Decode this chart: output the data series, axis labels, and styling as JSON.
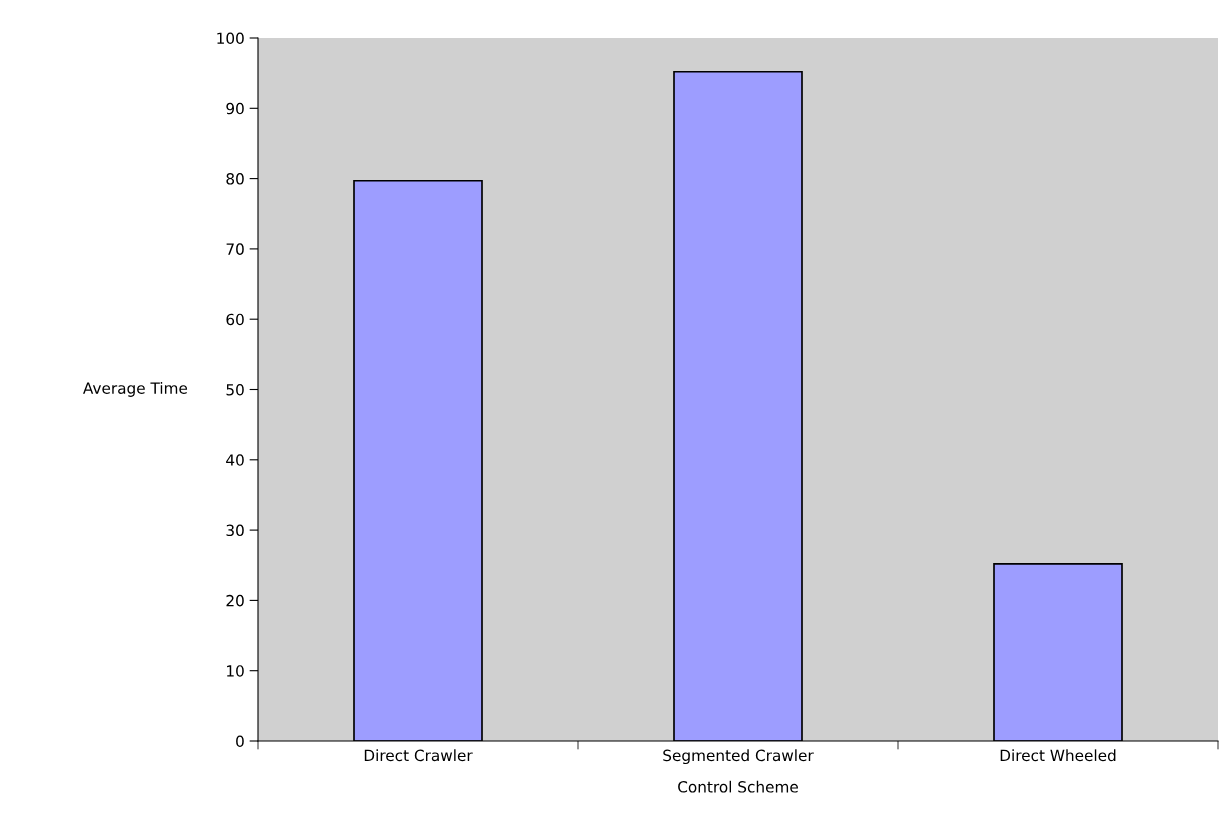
{
  "chart_data": {
    "type": "bar",
    "categories": [
      "Direct Crawler",
      "Segmented Crawler",
      "Direct Wheeled"
    ],
    "values": [
      79.7,
      95.2,
      25.2
    ],
    "color": "#9d9dff",
    "xlabel": "Control Scheme",
    "ylabel": "Average Time",
    "ylim": [
      0,
      100
    ],
    "yticks": [
      0,
      10,
      20,
      30,
      40,
      50,
      60,
      70,
      80,
      90,
      100
    ],
    "grid": false,
    "legend": false
  }
}
